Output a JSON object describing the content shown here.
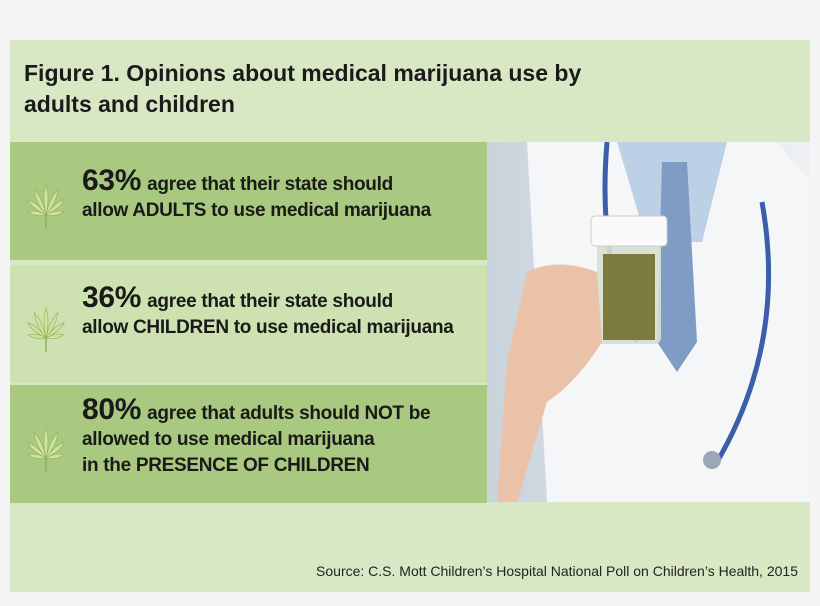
{
  "title": "Figure 1. Opinions about medical marijuana use by adults and children",
  "findings": [
    {
      "percent": "63%",
      "lines": [
        "agree that their state should",
        "allow ADULTS to use medical marijuana"
      ]
    },
    {
      "percent": "36%",
      "lines": [
        "agree that their state should",
        "allow CHILDREN to use medical marijuana"
      ]
    },
    {
      "percent": "80%",
      "lines": [
        "agree that adults should NOT be",
        "allowed to use medical marijuana",
        "in the PRESENCE OF CHILDREN"
      ]
    }
  ],
  "source": "Source: C.S. Mott Children’s Hospital National Poll on Children’s Health, 2015"
}
